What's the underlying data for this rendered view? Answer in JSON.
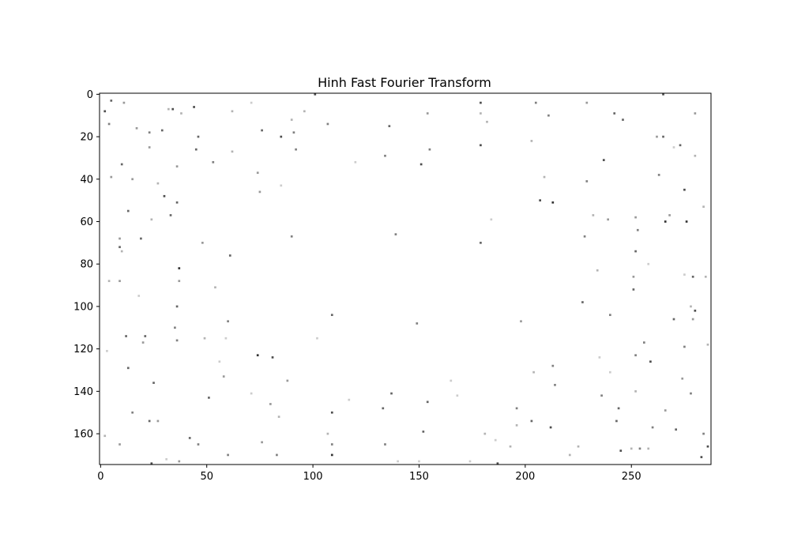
{
  "chart_data": {
    "type": "heatmap",
    "title": "Hinh Fast Fourier Transform",
    "xlabel": "",
    "ylabel": "",
    "xlim": [
      -0.5,
      287.5
    ],
    "ylim": [
      174.5,
      -0.5
    ],
    "x_ticks": [
      0,
      50,
      100,
      150,
      200,
      250
    ],
    "y_ticks": [
      0,
      20,
      40,
      60,
      80,
      100,
      120,
      140,
      160
    ],
    "colormap": "gray_r",
    "background": "#ffffff",
    "points": [
      [
        2,
        8,
        0.7
      ],
      [
        5,
        3,
        0.6
      ],
      [
        4,
        14,
        0.5
      ],
      [
        10,
        33,
        0.6
      ],
      [
        5,
        39,
        0.4
      ],
      [
        9,
        68,
        0.4
      ],
      [
        9,
        72,
        0.6
      ],
      [
        10,
        74,
        0.3
      ],
      [
        9,
        88,
        0.4
      ],
      [
        4,
        88,
        0.3
      ],
      [
        12,
        114,
        0.6
      ],
      [
        13,
        129,
        0.6
      ],
      [
        15,
        150,
        0.5
      ],
      [
        2,
        161,
        0.3
      ],
      [
        9,
        165,
        0.4
      ],
      [
        13,
        55,
        0.6
      ],
      [
        15,
        40,
        0.4
      ],
      [
        17,
        16,
        0.4
      ],
      [
        19,
        68,
        0.6
      ],
      [
        20,
        117,
        0.4
      ],
      [
        21,
        114,
        0.6
      ],
      [
        23,
        18,
        0.5
      ],
      [
        23,
        25,
        0.4
      ],
      [
        25,
        136,
        0.6
      ],
      [
        23,
        154,
        0.6
      ],
      [
        24,
        174,
        0.7
      ],
      [
        27,
        154,
        0.4
      ],
      [
        29,
        17,
        0.6
      ],
      [
        30,
        48,
        0.7
      ],
      [
        33,
        57,
        0.6
      ],
      [
        34,
        7,
        0.7
      ],
      [
        36,
        51,
        0.6
      ],
      [
        37,
        82,
        0.8
      ],
      [
        37,
        88,
        0.4
      ],
      [
        36,
        100,
        0.6
      ],
      [
        35,
        110,
        0.5
      ],
      [
        36,
        116,
        0.5
      ],
      [
        42,
        162,
        0.6
      ],
      [
        37,
        173,
        0.4
      ],
      [
        44,
        6,
        0.7
      ],
      [
        46,
        20,
        0.6
      ],
      [
        45,
        26,
        0.6
      ],
      [
        46,
        165,
        0.5
      ],
      [
        48,
        70,
        0.4
      ],
      [
        49,
        115,
        0.3
      ],
      [
        51,
        143,
        0.6
      ],
      [
        53,
        32,
        0.5
      ],
      [
        54,
        91,
        0.3
      ],
      [
        58,
        133,
        0.4
      ],
      [
        60,
        107,
        0.5
      ],
      [
        61,
        76,
        0.6
      ],
      [
        62,
        27,
        0.3
      ],
      [
        60,
        170,
        0.5
      ],
      [
        62,
        8,
        0.3
      ],
      [
        74,
        37,
        0.4
      ],
      [
        75,
        46,
        0.4
      ],
      [
        74,
        123,
        0.8
      ],
      [
        76,
        17,
        0.6
      ],
      [
        76,
        164,
        0.4
      ],
      [
        80,
        146,
        0.4
      ],
      [
        81,
        124,
        0.7
      ],
      [
        83,
        170,
        0.5
      ],
      [
        85,
        20,
        0.7
      ],
      [
        88,
        135,
        0.4
      ],
      [
        90,
        67,
        0.5
      ],
      [
        91,
        18,
        0.5
      ],
      [
        92,
        26,
        0.5
      ],
      [
        101,
        0,
        0.7
      ],
      [
        107,
        14,
        0.5
      ],
      [
        109,
        104,
        0.6
      ],
      [
        109,
        150,
        0.7
      ],
      [
        109,
        165,
        0.5
      ],
      [
        109,
        170,
        0.8
      ],
      [
        107,
        160,
        0.3
      ],
      [
        134,
        29,
        0.5
      ],
      [
        136,
        15,
        0.6
      ],
      [
        139,
        66,
        0.5
      ],
      [
        133,
        148,
        0.6
      ],
      [
        137,
        141,
        0.6
      ],
      [
        134,
        165,
        0.5
      ],
      [
        149,
        108,
        0.5
      ],
      [
        151,
        33,
        0.7
      ],
      [
        154,
        9,
        0.4
      ],
      [
        155,
        26,
        0.5
      ],
      [
        154,
        145,
        0.6
      ],
      [
        152,
        159,
        0.6
      ],
      [
        179,
        4,
        0.7
      ],
      [
        179,
        24,
        0.7
      ],
      [
        179,
        70,
        0.6
      ],
      [
        179,
        9,
        0.3
      ],
      [
        181,
        160,
        0.3
      ],
      [
        187,
        174,
        0.7
      ],
      [
        196,
        148,
        0.5
      ],
      [
        198,
        107,
        0.4
      ],
      [
        196,
        156,
        0.3
      ],
      [
        203,
        154,
        0.6
      ],
      [
        205,
        4,
        0.5
      ],
      [
        207,
        50,
        0.7
      ],
      [
        211,
        10,
        0.5
      ],
      [
        212,
        157,
        0.7
      ],
      [
        213,
        128,
        0.5
      ],
      [
        213,
        51,
        0.8
      ],
      [
        214,
        137,
        0.5
      ],
      [
        209,
        39,
        0.3
      ],
      [
        227,
        98,
        0.6
      ],
      [
        228,
        67,
        0.5
      ],
      [
        229,
        41,
        0.5
      ],
      [
        229,
        4,
        0.4
      ],
      [
        236,
        142,
        0.5
      ],
      [
        237,
        31,
        0.7
      ],
      [
        240,
        104,
        0.5
      ],
      [
        242,
        9,
        0.6
      ],
      [
        243,
        154,
        0.6
      ],
      [
        244,
        148,
        0.6
      ],
      [
        245,
        168,
        0.7
      ],
      [
        246,
        12,
        0.6
      ],
      [
        251,
        92,
        0.6
      ],
      [
        251,
        86,
        0.4
      ],
      [
        252,
        74,
        0.6
      ],
      [
        252,
        58,
        0.4
      ],
      [
        253,
        64,
        0.5
      ],
      [
        254,
        167,
        0.5
      ],
      [
        256,
        117,
        0.5
      ],
      [
        259,
        126,
        0.7
      ],
      [
        260,
        157,
        0.5
      ],
      [
        252,
        123,
        0.5
      ],
      [
        252,
        140,
        0.3
      ],
      [
        263,
        38,
        0.5
      ],
      [
        265,
        0,
        0.7
      ],
      [
        265,
        20,
        0.6
      ],
      [
        266,
        60,
        0.8
      ],
      [
        268,
        57,
        0.4
      ],
      [
        270,
        106,
        0.6
      ],
      [
        271,
        158,
        0.6
      ],
      [
        273,
        24,
        0.6
      ],
      [
        276,
        60,
        0.8
      ],
      [
        275,
        45,
        0.7
      ],
      [
        275,
        119,
        0.5
      ],
      [
        278,
        141,
        0.5
      ],
      [
        279,
        86,
        0.6
      ],
      [
        280,
        102,
        0.7
      ],
      [
        279,
        106,
        0.4
      ],
      [
        280,
        9,
        0.4
      ],
      [
        283,
        171,
        0.7
      ],
      [
        284,
        160,
        0.5
      ],
      [
        286,
        166,
        0.7
      ],
      [
        285,
        86,
        0.3
      ],
      [
        286,
        118,
        0.3
      ],
      [
        274,
        134,
        0.4
      ],
      [
        266,
        149,
        0.4
      ],
      [
        258,
        167,
        0.3
      ],
      [
        250,
        167,
        0.3
      ],
      [
        262,
        20,
        0.4
      ],
      [
        96,
        8,
        0.3
      ],
      [
        85,
        43,
        0.2
      ],
      [
        90,
        12,
        0.3
      ],
      [
        38,
        9,
        0.3
      ],
      [
        32,
        7,
        0.3
      ],
      [
        11,
        4,
        0.4
      ],
      [
        36,
        34,
        0.4
      ],
      [
        27,
        42,
        0.3
      ],
      [
        24,
        59,
        0.3
      ],
      [
        18,
        95,
        0.2
      ],
      [
        3,
        121,
        0.2
      ],
      [
        56,
        126,
        0.2
      ],
      [
        71,
        4,
        0.2
      ],
      [
        120,
        32,
        0.2
      ],
      [
        165,
        135,
        0.2
      ],
      [
        168,
        142,
        0.2
      ],
      [
        182,
        13,
        0.3
      ],
      [
        184,
        59,
        0.2
      ],
      [
        203,
        22,
        0.3
      ],
      [
        204,
        131,
        0.3
      ],
      [
        234,
        83,
        0.3
      ],
      [
        232,
        57,
        0.3
      ],
      [
        239,
        59,
        0.4
      ],
      [
        235,
        124,
        0.2
      ],
      [
        240,
        131,
        0.2
      ],
      [
        221,
        170,
        0.3
      ],
      [
        225,
        166,
        0.3
      ],
      [
        275,
        85,
        0.2
      ],
      [
        278,
        100,
        0.3
      ],
      [
        284,
        53,
        0.3
      ],
      [
        280,
        29,
        0.3
      ],
      [
        270,
        25,
        0.2
      ],
      [
        258,
        80,
        0.2
      ],
      [
        186,
        163,
        0.2
      ],
      [
        193,
        166,
        0.3
      ],
      [
        174,
        173,
        0.2
      ],
      [
        102,
        115,
        0.2
      ],
      [
        117,
        144,
        0.2
      ],
      [
        59,
        115,
        0.2
      ],
      [
        71,
        141,
        0.2
      ],
      [
        84,
        152,
        0.3
      ],
      [
        31,
        172,
        0.2
      ],
      [
        150,
        173,
        0.2
      ],
      [
        140,
        173,
        0.2
      ]
    ]
  }
}
